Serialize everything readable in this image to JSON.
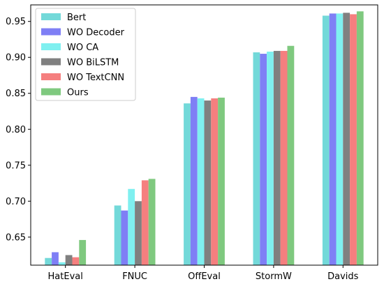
{
  "chart_data": {
    "type": "bar",
    "title": "",
    "xlabel": "",
    "ylabel": "",
    "categories": [
      "HatEval",
      "FNUC",
      "OffEval",
      "StormW",
      "Davids"
    ],
    "ylim": [
      0.611,
      0.973
    ],
    "yticks": [
      0.65,
      0.7,
      0.75,
      0.8,
      0.85,
      0.9,
      0.95
    ],
    "ytick_labels": [
      "0.65",
      "0.70",
      "0.75",
      "0.80",
      "0.85",
      "0.90",
      "0.95"
    ],
    "grid": false,
    "legend_position": "top-left",
    "series": [
      {
        "name": "Bert",
        "color": "#73d9d9",
        "values": [
          0.621,
          0.694,
          0.836,
          0.907,
          0.958
        ]
      },
      {
        "name": "WO Decoder",
        "color": "#7f7ff5",
        "values": [
          0.629,
          0.687,
          0.845,
          0.905,
          0.961
        ]
      },
      {
        "name": "WO CA",
        "color": "#7ff0f0",
        "values": [
          0.615,
          0.717,
          0.843,
          0.908,
          0.961
        ]
      },
      {
        "name": "WO BiLSTM",
        "color": "#808080",
        "values": [
          0.625,
          0.7,
          0.84,
          0.909,
          0.962
        ]
      },
      {
        "name": "WO TextCNN",
        "color": "#f57f7f",
        "values": [
          0.622,
          0.729,
          0.843,
          0.909,
          0.96
        ]
      },
      {
        "name": "Ours",
        "color": "#7fc97f",
        "values": [
          0.646,
          0.731,
          0.844,
          0.916,
          0.964
        ]
      }
    ]
  }
}
